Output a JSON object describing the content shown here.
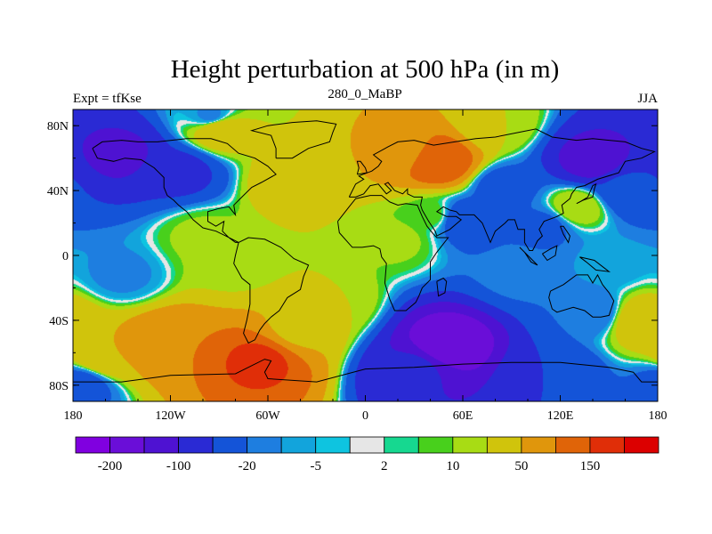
{
  "chart_data": {
    "type": "heatmap",
    "title": "Height perturbation at 500 hPa (in m)",
    "left_label": "Expt = tfKse",
    "center_label": "280_0_MaBP",
    "right_label": "JJA",
    "x_range": [
      -180,
      180
    ],
    "y_range": [
      -90,
      90
    ],
    "x_ticks": [
      {
        "value": -180,
        "label": "180"
      },
      {
        "value": -120,
        "label": "120W"
      },
      {
        "value": -60,
        "label": "60W"
      },
      {
        "value": 0,
        "label": "0"
      },
      {
        "value": 60,
        "label": "60E"
      },
      {
        "value": 120,
        "label": "120E"
      },
      {
        "value": 180,
        "label": "180"
      }
    ],
    "y_ticks": [
      {
        "value": 80,
        "label": "80N"
      },
      {
        "value": 40,
        "label": "40N"
      },
      {
        "value": 0,
        "label": "0"
      },
      {
        "value": -40,
        "label": "40S"
      },
      {
        "value": -80,
        "label": "80S"
      }
    ],
    "contour_levels": [
      -200,
      -150,
      -100,
      -50,
      -20,
      -10,
      -5,
      -2,
      2,
      5,
      10,
      20,
      50,
      100,
      150,
      200
    ],
    "colorbar_labels": [
      {
        "level": -200,
        "label": "-200"
      },
      {
        "level": -100,
        "label": "-100"
      },
      {
        "level": -20,
        "label": "-20"
      },
      {
        "level": -5,
        "label": "-5"
      },
      {
        "level": 2,
        "label": "2"
      },
      {
        "level": 10,
        "label": "10"
      },
      {
        "level": 50,
        "label": "50"
      },
      {
        "level": 150,
        "label": "150"
      }
    ],
    "colors": [
      "#8000e0",
      "#6a0ed8",
      "#4e12d2",
      "#2a2ad4",
      "#1454d8",
      "#1e7ee0",
      "#12a4dc",
      "#0ec4e0",
      "#e6e6e6",
      "#16d890",
      "#48d01c",
      "#a8dc14",
      "#d0c40c",
      "#e0960c",
      "#e06408",
      "#e02e08",
      "#dc0000"
    ],
    "field_features": [
      {
        "lon": -150,
        "lat": 62,
        "value": -110
      },
      {
        "lon": -115,
        "lat": 52,
        "value": -60
      },
      {
        "lon": -90,
        "lat": 78,
        "value": 40
      },
      {
        "lon": -95,
        "lat": 86,
        "value": -12
      },
      {
        "lon": -45,
        "lat": 45,
        "value": 35
      },
      {
        "lon": 20,
        "lat": 65,
        "value": 50
      },
      {
        "lon": 45,
        "lat": 58,
        "value": 150
      },
      {
        "lon": 80,
        "lat": 80,
        "value": 20
      },
      {
        "lon": 140,
        "lat": 58,
        "value": -120
      },
      {
        "lon": 160,
        "lat": 40,
        "value": -40
      },
      {
        "lon": 85,
        "lat": 42,
        "value": -30
      },
      {
        "lon": 60,
        "lat": 22,
        "value": -40
      },
      {
        "lon": 110,
        "lat": 18,
        "value": -25
      },
      {
        "lon": 130,
        "lat": 30,
        "value": 20
      },
      {
        "lon": -150,
        "lat": -12,
        "value": -12
      },
      {
        "lon": -100,
        "lat": 12,
        "value": 12
      },
      {
        "lon": -80,
        "lat": -5,
        "value": 15
      },
      {
        "lon": 20,
        "lat": 10,
        "value": 12
      },
      {
        "lon": 40,
        "lat": 25,
        "value": 8
      },
      {
        "lon": 95,
        "lat": -10,
        "value": -15
      },
      {
        "lon": 150,
        "lat": -5,
        "value": -8
      },
      {
        "lon": -120,
        "lat": -55,
        "value": 100
      },
      {
        "lon": -65,
        "lat": -65,
        "value": 160
      },
      {
        "lon": -40,
        "lat": -45,
        "value": 40
      },
      {
        "lon": -160,
        "lat": -62,
        "value": 50
      },
      {
        "lon": -175,
        "lat": -80,
        "value": -30
      },
      {
        "lon": 50,
        "lat": -55,
        "value": -190
      },
      {
        "lon": 30,
        "lat": -70,
        "value": -90
      },
      {
        "lon": 115,
        "lat": -75,
        "value": -50
      },
      {
        "lon": 140,
        "lat": -35,
        "value": -20
      },
      {
        "lon": 170,
        "lat": -40,
        "value": 40
      },
      {
        "lon": -20,
        "lat": -30,
        "value": 20
      }
    ],
    "coastlines": [
      [
        [
          -168,
          66
        ],
        [
          -162,
          70
        ],
        [
          -150,
          71
        ],
        [
          -140,
          70
        ],
        [
          -128,
          70
        ],
        [
          -110,
          72
        ],
        [
          -95,
          72
        ],
        [
          -85,
          69
        ],
        [
          -78,
          63
        ],
        [
          -68,
          60
        ],
        [
          -60,
          55
        ],
        [
          -55,
          50
        ],
        [
          -64,
          45
        ],
        [
          -70,
          42
        ],
        [
          -76,
          36
        ],
        [
          -81,
          31
        ],
        [
          -80,
          25
        ],
        [
          -84,
          30
        ],
        [
          -90,
          29
        ],
        [
          -97,
          27
        ],
        [
          -97,
          21
        ],
        [
          -92,
          18
        ],
        [
          -87,
          21
        ],
        [
          -88,
          15
        ],
        [
          -84,
          11
        ],
        [
          -80,
          8
        ],
        [
          -78,
          8
        ],
        [
          -86,
          12
        ],
        [
          -92,
          15
        ],
        [
          -100,
          17
        ],
        [
          -106,
          22
        ],
        [
          -110,
          27
        ],
        [
          -115,
          31
        ],
        [
          -118,
          34
        ],
        [
          -122,
          37
        ],
        [
          -124,
          42
        ],
        [
          -124,
          48
        ],
        [
          -130,
          54
        ],
        [
          -138,
          59
        ],
        [
          -148,
          60
        ],
        [
          -155,
          58
        ],
        [
          -165,
          60
        ],
        [
          -168,
          66
        ]
      ],
      [
        [
          -55,
          60
        ],
        [
          -45,
          60
        ],
        [
          -35,
          66
        ],
        [
          -22,
          70
        ],
        [
          -20,
          76
        ],
        [
          -18,
          81
        ],
        [
          -30,
          83
        ],
        [
          -45,
          82
        ],
        [
          -60,
          80
        ],
        [
          -70,
          77
        ],
        [
          -58,
          74
        ],
        [
          -55,
          66
        ],
        [
          -55,
          60
        ]
      ],
      [
        [
          -78,
          8
        ],
        [
          -72,
          11
        ],
        [
          -62,
          10
        ],
        [
          -52,
          5
        ],
        [
          -44,
          -2
        ],
        [
          -35,
          -6
        ],
        [
          -38,
          -13
        ],
        [
          -40,
          -21
        ],
        [
          -48,
          -26
        ],
        [
          -53,
          -34
        ],
        [
          -58,
          -38
        ],
        [
          -62,
          -42
        ],
        [
          -65,
          -46
        ],
        [
          -68,
          -52
        ],
        [
          -72,
          -54
        ],
        [
          -75,
          -48
        ],
        [
          -73,
          -40
        ],
        [
          -71,
          -30
        ],
        [
          -71,
          -18
        ],
        [
          -76,
          -14
        ],
        [
          -81,
          -5
        ],
        [
          -80,
          0
        ],
        [
          -78,
          8
        ]
      ],
      [
        [
          -10,
          36
        ],
        [
          -6,
          44
        ],
        [
          -1,
          47
        ],
        [
          -4,
          49
        ],
        [
          4,
          52
        ],
        [
          8,
          55
        ],
        [
          10,
          58
        ],
        [
          5,
          62
        ],
        [
          14,
          67
        ],
        [
          20,
          70
        ],
        [
          30,
          71
        ],
        [
          42,
          68
        ],
        [
          55,
          70
        ],
        [
          68,
          72
        ],
        [
          80,
          73
        ],
        [
          95,
          76
        ],
        [
          105,
          78
        ],
        [
          115,
          73
        ],
        [
          130,
          71
        ],
        [
          140,
          72
        ],
        [
          160,
          70
        ],
        [
          170,
          66
        ],
        [
          178,
          64
        ],
        [
          170,
          60
        ],
        [
          160,
          58
        ],
        [
          156,
          51
        ],
        [
          143,
          47
        ],
        [
          135,
          43
        ],
        [
          130,
          42
        ],
        [
          127,
          38
        ],
        [
          126,
          35
        ],
        [
          121,
          31
        ],
        [
          122,
          26
        ],
        [
          118,
          24
        ],
        [
          110,
          21
        ],
        [
          107,
          16
        ],
        [
          109,
          12
        ],
        [
          106,
          9
        ],
        [
          103,
          3
        ],
        [
          101,
          3
        ],
        [
          98,
          8
        ],
        [
          98,
          16
        ],
        [
          94,
          16
        ],
        [
          92,
          22
        ],
        [
          88,
          22
        ],
        [
          86,
          20
        ],
        [
          80,
          15
        ],
        [
          77,
          8
        ],
        [
          72,
          20
        ],
        [
          67,
          25
        ],
        [
          58,
          25
        ],
        [
          56,
          27
        ],
        [
          52,
          28
        ],
        [
          48,
          30
        ],
        [
          44,
          27
        ],
        [
          50,
          24
        ],
        [
          56,
          24
        ],
        [
          59,
          22
        ],
        [
          52,
          16
        ],
        [
          44,
          12
        ],
        [
          43,
          15
        ],
        [
          39,
          21
        ],
        [
          35,
          28
        ],
        [
          34,
          31
        ],
        [
          35,
          36
        ],
        [
          30,
          36
        ],
        [
          26,
          38
        ],
        [
          26,
          41
        ],
        [
          23,
          38
        ],
        [
          18,
          40
        ],
        [
          14,
          45
        ],
        [
          12,
          44
        ],
        [
          16,
          40
        ],
        [
          13,
          38
        ],
        [
          8,
          44
        ],
        [
          3,
          43
        ],
        [
          -1,
          38
        ],
        [
          -6,
          36
        ],
        [
          -10,
          36
        ]
      ],
      [
        [
          -17,
          21
        ],
        [
          -16,
          14
        ],
        [
          -8,
          5
        ],
        [
          -2,
          5
        ],
        [
          5,
          6
        ],
        [
          9,
          4
        ],
        [
          10,
          -1
        ],
        [
          13,
          -5
        ],
        [
          12,
          -17
        ],
        [
          15,
          -27
        ],
        [
          18,
          -34
        ],
        [
          25,
          -34
        ],
        [
          31,
          -29
        ],
        [
          33,
          -25
        ],
        [
          35,
          -20
        ],
        [
          40,
          -15
        ],
        [
          40,
          -10
        ],
        [
          40,
          -4
        ],
        [
          44,
          2
        ],
        [
          51,
          11
        ],
        [
          44,
          11
        ],
        [
          42,
          13
        ],
        [
          38,
          18
        ],
        [
          35,
          24
        ],
        [
          32,
          31
        ],
        [
          25,
          32
        ],
        [
          20,
          31
        ],
        [
          15,
          33
        ],
        [
          10,
          37
        ],
        [
          3,
          37
        ],
        [
          -6,
          35
        ],
        [
          -10,
          30
        ],
        [
          -17,
          21
        ]
      ],
      [
        [
          44,
          -16
        ],
        [
          48,
          -14
        ],
        [
          50,
          -16
        ],
        [
          49,
          -23
        ],
        [
          45,
          -25
        ],
        [
          44,
          -16
        ]
      ],
      [
        [
          114,
          -22
        ],
        [
          122,
          -18
        ],
        [
          130,
          -12
        ],
        [
          137,
          -12
        ],
        [
          140,
          -17
        ],
        [
          143,
          -12
        ],
        [
          146,
          -18
        ],
        [
          150,
          -23
        ],
        [
          153,
          -28
        ],
        [
          150,
          -37
        ],
        [
          145,
          -38
        ],
        [
          140,
          -38
        ],
        [
          135,
          -34
        ],
        [
          128,
          -32
        ],
        [
          118,
          -35
        ],
        [
          115,
          -33
        ],
        [
          113,
          -26
        ],
        [
          114,
          -22
        ]
      ],
      [
        [
          -180,
          -78
        ],
        [
          -150,
          -78
        ],
        [
          -120,
          -74
        ],
        [
          -80,
          -73
        ],
        [
          -62,
          -64
        ],
        [
          -58,
          -65
        ],
        [
          -62,
          -72
        ],
        [
          -60,
          -76
        ],
        [
          -30,
          -78
        ],
        [
          0,
          -70
        ],
        [
          30,
          -69
        ],
        [
          60,
          -67
        ],
        [
          90,
          -66
        ],
        [
          120,
          -66
        ],
        [
          150,
          -69
        ],
        [
          165,
          -72
        ],
        [
          170,
          -78
        ],
        [
          180,
          -78
        ]
      ],
      [
        [
          130,
          32
        ],
        [
          134,
          34
        ],
        [
          140,
          36
        ],
        [
          141,
          41
        ],
        [
          142,
          44
        ],
        [
          140,
          43
        ],
        [
          137,
          36
        ],
        [
          132,
          33
        ],
        [
          130,
          32
        ]
      ],
      [
        [
          -5,
          50
        ],
        [
          1,
          51
        ],
        [
          0,
          54
        ],
        [
          -3,
          58
        ],
        [
          -5,
          58
        ],
        [
          -4,
          54
        ],
        [
          -5,
          50
        ]
      ],
      [
        [
          95,
          5
        ],
        [
          100,
          0
        ],
        [
          106,
          -6
        ],
        [
          102,
          -4
        ],
        [
          98,
          2
        ],
        [
          95,
          5
        ]
      ],
      [
        [
          109,
          1
        ],
        [
          112,
          -3
        ],
        [
          117,
          0
        ],
        [
          118,
          6
        ],
        [
          114,
          4
        ],
        [
          109,
          1
        ]
      ],
      [
        [
          132,
          -1
        ],
        [
          141,
          -3
        ],
        [
          150,
          -10
        ],
        [
          142,
          -9
        ],
        [
          136,
          -4
        ],
        [
          132,
          -1
        ]
      ],
      [
        [
          120,
          18
        ],
        [
          122,
          13
        ],
        [
          125,
          8
        ],
        [
          126,
          12
        ],
        [
          122,
          18
        ],
        [
          120,
          18
        ]
      ]
    ]
  }
}
